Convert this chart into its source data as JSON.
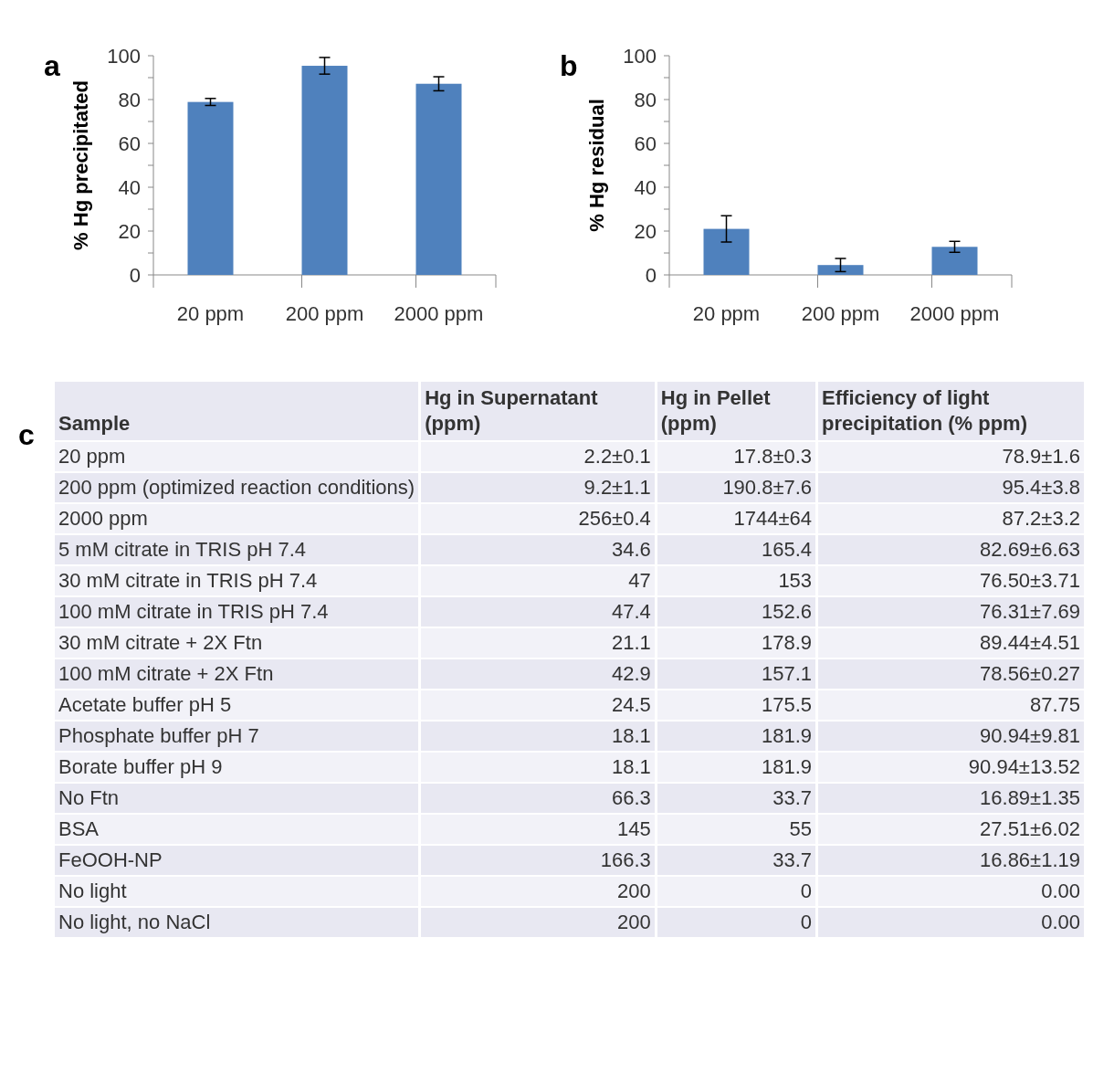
{
  "chart_data": [
    {
      "type": "bar",
      "title": "a",
      "ylabel": "% Hg precipitated",
      "categories": [
        "20 ppm",
        "200 ppm",
        "2000 ppm"
      ],
      "values": [
        78.9,
        95.4,
        87.2
      ],
      "errors": [
        1.6,
        3.8,
        3.2
      ],
      "color": "#4f81bd",
      "ylim": [
        0,
        100
      ],
      "yticks": [
        0,
        {
          "value": 10,
          "label": null
        },
        20,
        {
          "value": 30,
          "label": null
        },
        40,
        {
          "value": 50,
          "label": null
        },
        60,
        {
          "value": 70,
          "label": null
        },
        80,
        {
          "value": 90,
          "label": null
        },
        100
      ],
      "grid": false
    },
    {
      "type": "bar",
      "title": "b",
      "ylabel": "% Hg residual",
      "categories": [
        "20 ppm",
        "200 ppm",
        "2000 ppm"
      ],
      "values": [
        21,
        4.5,
        12.8
      ],
      "errors": [
        6,
        3,
        2.5
      ],
      "color": "#4f81bd",
      "ylim": [
        0,
        100
      ],
      "yticks": [
        0,
        {
          "value": 10,
          "label": null
        },
        20,
        {
          "value": 30,
          "label": null
        },
        40,
        {
          "value": 50,
          "label": null
        },
        60,
        {
          "value": 70,
          "label": null
        },
        80,
        {
          "value": 90,
          "label": null
        },
        100
      ],
      "grid": false
    },
    {
      "type": "other",
      "title": "c",
      "categories": [
        "Sample",
        "Hg in Supernatant (ppm)",
        "Hg in Pellet (ppm)",
        "Efficiency of light precipitation (% ppm)"
      ],
      "cell_labels": [
        [
          "20 ppm",
          "2.2±0.1",
          "17.8±0.3",
          "78.9±1.6"
        ],
        [
          "200 ppm (optimized reaction conditions)",
          "9.2±1.1",
          "190.8±7.6",
          "95.4±3.8"
        ],
        [
          "2000 ppm",
          "256±0.4",
          "1744±64",
          "87.2±3.2"
        ],
        [
          "5 mM citrate in TRIS pH 7.4",
          "34.6",
          "165.4",
          "82.69±6.63"
        ],
        [
          "30 mM citrate in TRIS pH 7.4",
          "47",
          "153",
          "76.50±3.71"
        ],
        [
          "100 mM citrate in TRIS pH 7.4",
          "47.4",
          "152.6",
          "76.31±7.69"
        ],
        [
          "30 mM citrate + 2X Ftn",
          "21.1",
          "178.9",
          "89.44±4.51"
        ],
        [
          "100 mM citrate + 2X Ftn",
          "42.9",
          "157.1",
          "78.56±0.27"
        ],
        [
          "Acetate buffer pH 5",
          "24.5",
          "175.5",
          "87.75"
        ],
        [
          "Phosphate buffer pH 7",
          "18.1",
          "181.9",
          "90.94±9.81"
        ],
        [
          "Borate buffer pH 9",
          "18.1",
          "181.9",
          "90.94±13.52"
        ],
        [
          "No Ftn",
          "66.3",
          "33.7",
          "16.89±1.35"
        ],
        [
          "BSA",
          "145",
          "55",
          "27.51±6.02"
        ],
        [
          "FeOOH-NP",
          "166.3",
          "33.7",
          "16.86±1.19"
        ],
        [
          "No light",
          "200",
          "0",
          "0.00"
        ],
        [
          "No light, no NaCl",
          "200",
          "0",
          "0.00"
        ]
      ]
    }
  ]
}
